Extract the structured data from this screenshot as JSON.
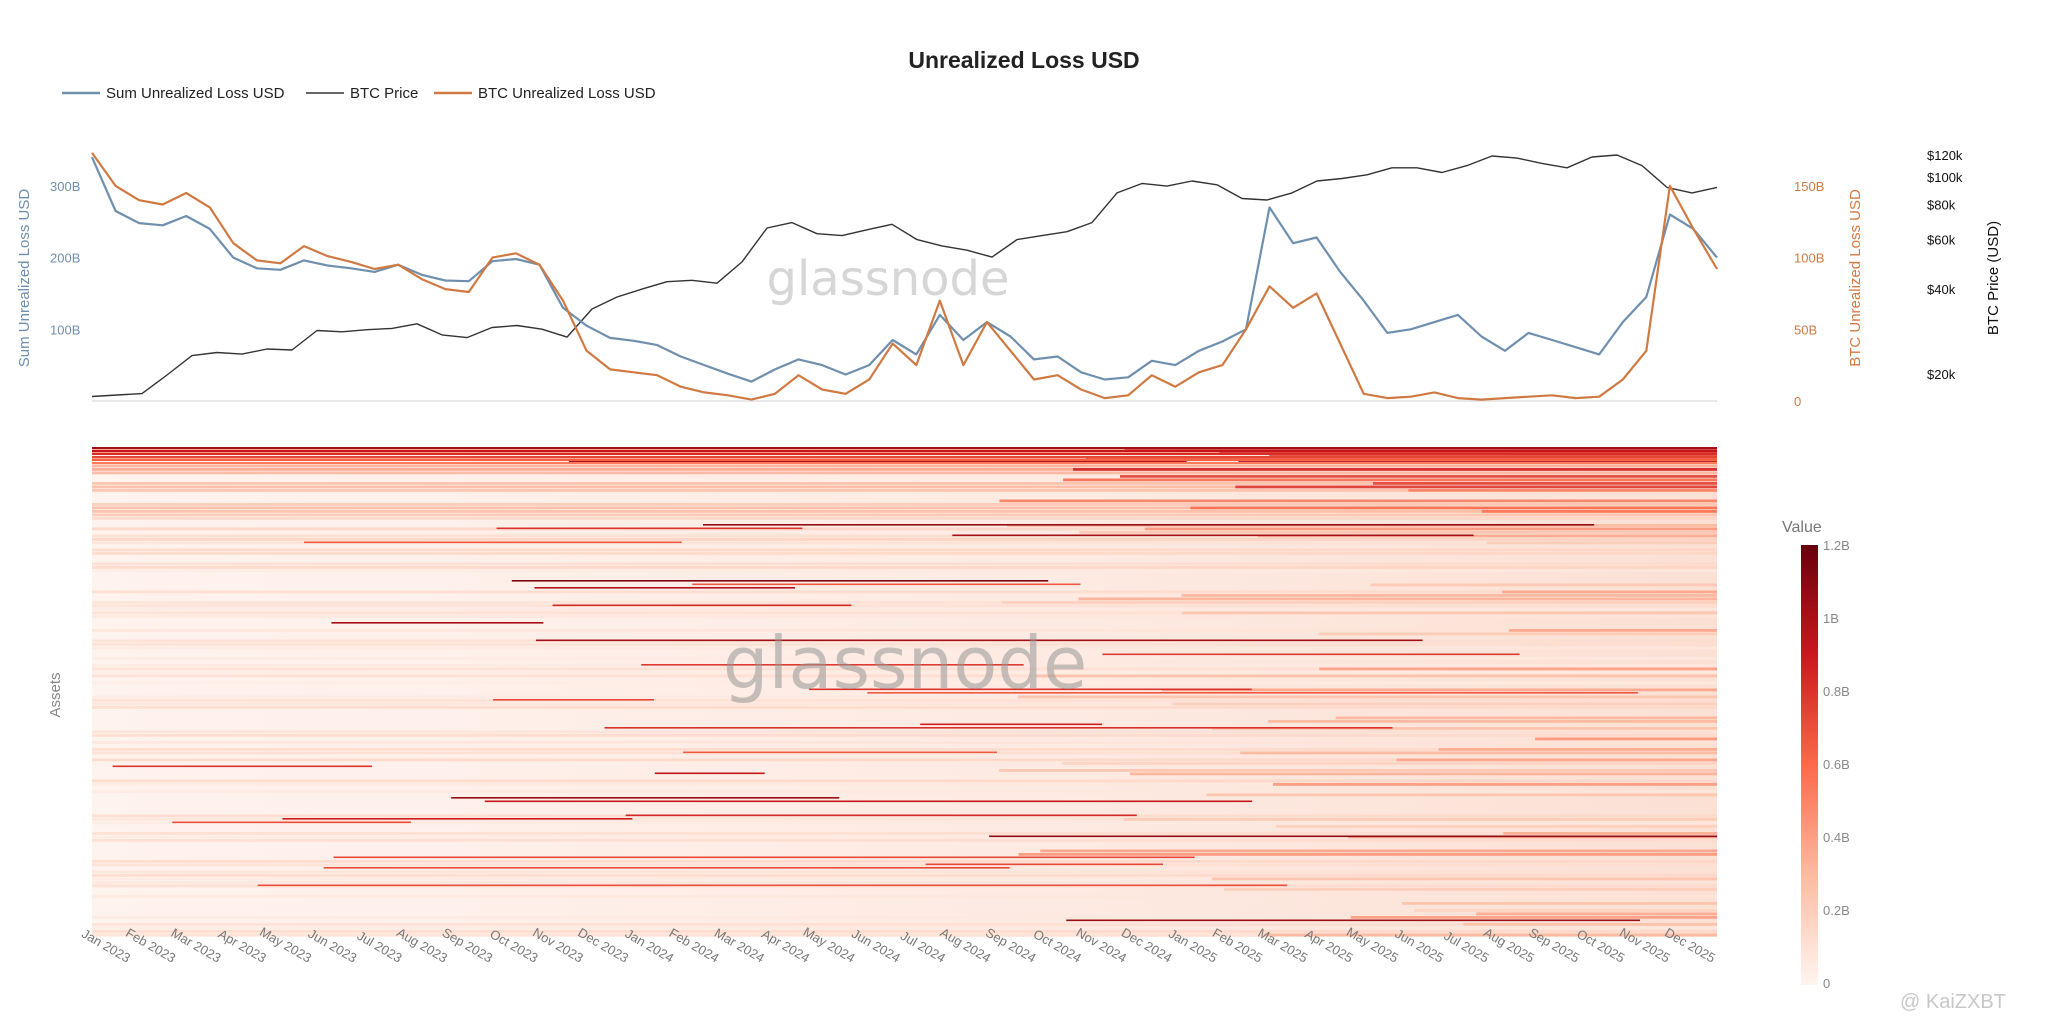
{
  "chart_data": [
    {
      "type": "line",
      "title": "Unrealized Loss USD",
      "legend_position": "top-left",
      "series": [
        {
          "name": "Sum Unrealized Loss USD",
          "color": "#6f8fae",
          "axis": "left",
          "values": [
            340,
            265,
            248,
            245,
            258,
            240,
            200,
            185,
            183,
            196,
            189,
            185,
            180,
            190,
            176,
            168,
            167,
            195,
            198,
            190,
            130,
            105,
            88,
            84,
            78,
            62,
            50,
            38,
            27,
            44,
            58,
            50,
            37,
            50,
            85,
            65,
            120,
            85,
            110,
            90,
            58,
            62,
            40,
            30,
            33,
            56,
            50,
            70,
            83,
            100,
            270,
            220,
            228,
            180,
            140,
            95,
            100,
            110,
            120,
            90,
            70,
            95,
            85,
            75,
            65,
            110,
            145,
            260,
            240,
            200
          ]
        },
        {
          "name": "BTC Price",
          "color": "#333333",
          "axis": "right2",
          "values": [
            16600,
            16800,
            17000,
            19800,
            23200,
            23800,
            23500,
            24500,
            24300,
            28500,
            28200,
            28700,
            29000,
            30100,
            27500,
            26900,
            29200,
            29700,
            28800,
            27000,
            34000,
            37500,
            40000,
            42500,
            43000,
            42000,
            50000,
            66000,
            69000,
            63000,
            62000,
            65000,
            68000,
            60000,
            57000,
            55000,
            52000,
            60000,
            62000,
            64000,
            69000,
            88000,
            95000,
            93000,
            97000,
            94000,
            84000,
            83000,
            88000,
            97000,
            99000,
            102000,
            108000,
            108000,
            104000,
            110000,
            119000,
            117000,
            112000,
            108000,
            118000,
            120000,
            110000,
            92000,
            88000,
            92000
          ]
        },
        {
          "name": "BTC Unrealized Loss USD",
          "color": "#d07a43",
          "axis": "right1",
          "values": [
            173,
            150,
            140,
            137,
            145,
            135,
            110,
            98,
            96,
            108,
            101,
            97,
            92,
            95,
            85,
            78,
            76,
            100,
            103,
            95,
            70,
            35,
            22,
            20,
            18,
            10,
            6,
            4,
            1,
            5,
            18,
            8,
            5,
            15,
            40,
            25,
            70,
            25,
            55,
            35,
            15,
            18,
            8,
            2,
            4,
            18,
            10,
            20,
            25,
            50,
            80,
            65,
            75,
            40,
            5,
            2,
            3,
            6,
            2,
            1,
            2,
            3,
            4,
            2,
            3,
            15,
            35,
            150,
            120,
            92
          ]
        }
      ],
      "x_labels": [
        "Jan 2023",
        "Feb 2023",
        "Mar 2023",
        "Apr 2023",
        "May 2023",
        "Jun 2023",
        "Jul 2023",
        "Aug 2023",
        "Sep 2023",
        "Oct 2023",
        "Nov 2023",
        "Dec 2023",
        "Jan 2024",
        "Feb 2024",
        "Mar 2024",
        "Apr 2024",
        "May 2024",
        "Jun 2024",
        "Jul 2024",
        "Aug 2024",
        "Sep 2024",
        "Oct 2024",
        "Nov 2024",
        "Dec 2024",
        "Jan 2025",
        "Feb 2025",
        "Mar 2025",
        "Apr 2025",
        "May 2025",
        "Jun 2025",
        "Jul 2025",
        "Aug 2025",
        "Sep 2025",
        "Oct 2025",
        "Nov 2025",
        "Dec 2025"
      ],
      "y_left": {
        "label": "Sum Unrealized Loss USD",
        "ticks": [
          "100B",
          "200B",
          "300B"
        ],
        "tick_values": [
          100,
          200,
          300
        ],
        "range": [
          0,
          350
        ]
      },
      "y_right1": {
        "label": "BTC Unrealized Loss USD",
        "ticks": [
          "0",
          "50B",
          "100B",
          "150B"
        ],
        "tick_values": [
          0,
          50,
          100,
          150
        ],
        "range": [
          0,
          175
        ]
      },
      "y_right2": {
        "label": "BTC Price (USD)",
        "ticks": [
          "$20k",
          "$40k",
          "$60k",
          "$80k",
          "$100k",
          "$120k"
        ],
        "tick_values": [
          20000,
          40000,
          60000,
          80000,
          100000,
          120000
        ],
        "scale": "log",
        "range": [
          16000,
          125000
        ]
      }
    },
    {
      "type": "heatmap",
      "y_label": "Assets",
      "x_labels": [
        "Jan 2023",
        "Feb 2023",
        "Mar 2023",
        "Apr 2023",
        "May 2023",
        "Jun 2023",
        "Jul 2023",
        "Aug 2023",
        "Sep 2023",
        "Oct 2023",
        "Nov 2023",
        "Dec 2023",
        "Jan 2024",
        "Feb 2024",
        "Mar 2024",
        "Apr 2024",
        "May 2024",
        "Jun 2024",
        "Jul 2024",
        "Aug 2024",
        "Sep 2024",
        "Oct 2024",
        "Nov 2024",
        "Dec 2024",
        "Jan 2025",
        "Feb 2025",
        "Mar 2025",
        "Apr 2025",
        "May 2025",
        "Jun 2025",
        "Jul 2025",
        "Aug 2025",
        "Sep 2025",
        "Oct 2025",
        "Nov 2025",
        "Dec 2025"
      ],
      "colorbar": {
        "title": "Value",
        "ticks": [
          "0",
          "0.2B",
          "0.4B",
          "0.6B",
          "0.8B",
          "1B",
          "1.2B"
        ],
        "range": [
          0,
          1.2
        ],
        "colors": [
          "#fff5f0",
          "#fcbba1",
          "#fb6a4a",
          "#cb181d",
          "#67000d"
        ]
      }
    }
  ],
  "watermark": "glassnode",
  "credit": "@ KaiZXBT"
}
